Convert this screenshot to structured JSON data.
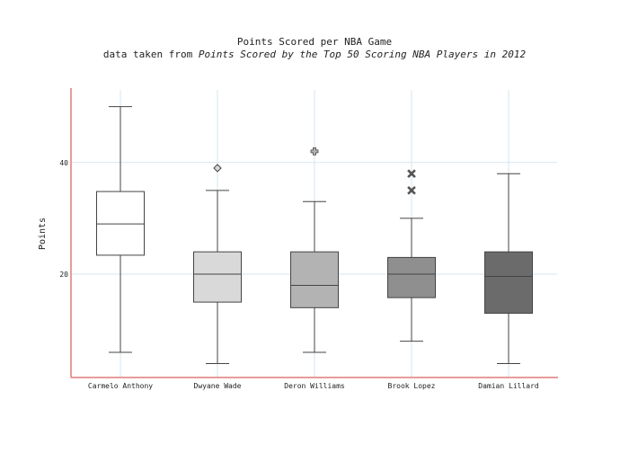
{
  "chart_data": {
    "type": "box",
    "title": "Points Scored per NBA Game",
    "subtitle_prefix": "data taken from ",
    "subtitle_source": "Points Scored by the Top 50 Scoring NBA Players in 2012",
    "ylabel": "Points",
    "xlabel": "",
    "ylim": [
      1.5,
      53
    ],
    "yticks": [
      20,
      40
    ],
    "grid": true,
    "axis_color": "#e07a7a",
    "grid_color": "#d6e6ef",
    "box_border_color": "#444444",
    "series": [
      {
        "name": "Carmelo Anthony",
        "whisker_low": 6,
        "q1": 23.4,
        "median": 29,
        "q3": 34.8,
        "whisker_high": 50,
        "outliers": [],
        "outlier_marker": "",
        "color": "#ffffff"
      },
      {
        "name": "Dwyane Wade",
        "whisker_low": 4,
        "q1": 15,
        "median": 20,
        "q3": 24,
        "whisker_high": 35,
        "outliers": [
          39
        ],
        "outlier_marker": "diamond",
        "color": "#d9d9d9"
      },
      {
        "name": "Deron Williams",
        "whisker_low": 6,
        "q1": 14,
        "median": 18,
        "q3": 24,
        "whisker_high": 33,
        "outliers": [
          42
        ],
        "outlier_marker": "cross",
        "color": "#b3b3b3"
      },
      {
        "name": "Brook Lopez",
        "whisker_low": 8,
        "q1": 15.8,
        "median": 20,
        "q3": 23,
        "whisker_high": 30,
        "outliers": [
          35,
          38
        ],
        "outlier_marker": "x",
        "color": "#8f8f8f"
      },
      {
        "name": "Damian Lillard",
        "whisker_low": 4,
        "q1": 13,
        "median": 19.6,
        "q3": 24,
        "whisker_high": 38,
        "outliers": [],
        "outlier_marker": "",
        "color": "#6b6b6b"
      }
    ]
  }
}
